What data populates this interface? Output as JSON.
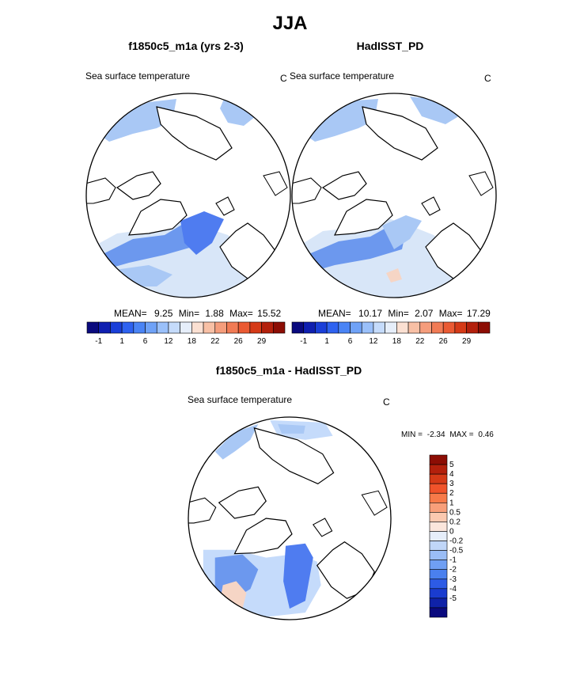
{
  "main_title": "JJA",
  "panels": [
    {
      "title": "f1850c5_m1a (yrs 2-3)",
      "subtitle": "Sea surface temperature",
      "unit": "C",
      "stats": {
        "mean_label": "MEAN=",
        "mean": "9.25",
        "min_label": "Min=",
        "min": "1.88",
        "max_label": "Max=",
        "max": "15.52"
      }
    },
    {
      "title": "HadISST_PD",
      "subtitle": "Sea surface temperature",
      "unit": "C",
      "stats": {
        "mean_label": "MEAN=",
        "mean": "10.17",
        "min_label": "Min=",
        "min": "2.07",
        "max_label": "Max=",
        "max": "17.29"
      }
    },
    {
      "title": "f1850c5_m1a - HadISST_PD",
      "subtitle": "Sea surface temperature",
      "unit": "C",
      "minmax": {
        "min_label": "MIN =",
        "min": "-2.34",
        "max_label": "MAX =",
        "max": "0.46"
      }
    }
  ],
  "colorbar_horizontal": {
    "colors": [
      "#0a0a7e",
      "#0f1fb0",
      "#1a3fd8",
      "#2e62f0",
      "#4a84f5",
      "#6fa2f7",
      "#9ac0fa",
      "#c5dbfb",
      "#e6eefa",
      "#fbe0d2",
      "#f8c0a5",
      "#f59d7c",
      "#f17b55",
      "#ea5a33",
      "#d53a17",
      "#b3200c",
      "#8c0d04"
    ],
    "labels": [
      "-1",
      "1",
      "6",
      "12",
      "18",
      "22",
      "26",
      "29"
    ]
  },
  "colorbar_vertical": {
    "colors": [
      "#8c0d04",
      "#b3200c",
      "#d53a17",
      "#f0532a",
      "#f77a49",
      "#f89f7a",
      "#fbc9b0",
      "#fbe6dc",
      "#e6eefa",
      "#c0d6f8",
      "#9abdf6",
      "#6f9ff3",
      "#4a80ee",
      "#2d5be5",
      "#1a3ccf",
      "#0f22a8",
      "#0a0a7e"
    ],
    "labels": [
      "5",
      "4",
      "3",
      "2",
      "1",
      "0.5",
      "0.2",
      "0",
      "-0.2",
      "-0.5",
      "-1",
      "-2",
      "-3",
      "-4",
      "-5"
    ]
  },
  "colors": {
    "ocean_blue": "#a9c8f5",
    "ocean_light": "#d8e6f8",
    "ocean_mid": "#6c98ee",
    "ocean_deep": "#4f7cf0",
    "warm": "#f6d5c5",
    "land": "#ffffff"
  }
}
